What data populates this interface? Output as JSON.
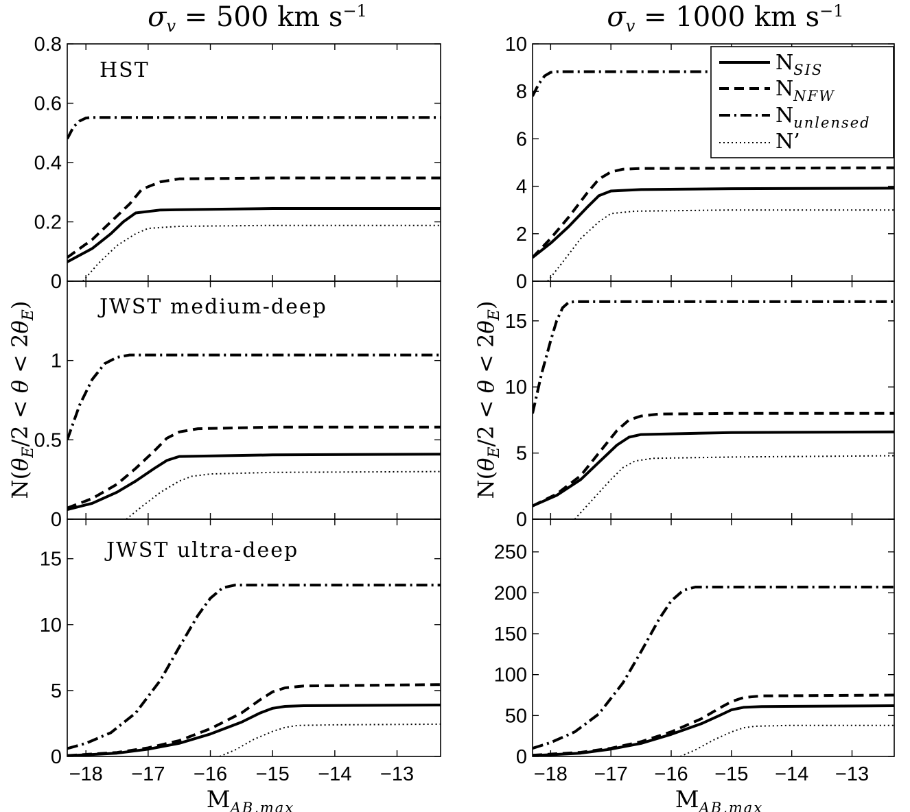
{
  "figure": {
    "titles": [
      "σ_v = 500 km s⁻¹",
      "σ_v = 1000 km s⁻¹"
    ],
    "xlabel_main": "M",
    "xlabel_sub": "AB,max",
    "ylabel": "N(θ_E/2 < θ < 2θ_E)",
    "legend": [
      {
        "main": "N",
        "sub": "SIS",
        "style": "solid"
      },
      {
        "main": "N",
        "sub": "NFW",
        "style": "dashed"
      },
      {
        "main": "N",
        "sub": "unlensed",
        "style": "dashdot"
      },
      {
        "main": "N’",
        "sub": "",
        "style": "dotted"
      }
    ]
  },
  "chart_data": [
    {
      "type": "line",
      "title": "σ_v = 500 km s⁻¹",
      "label": "HST",
      "xlim": [
        -18.3,
        -12.3
      ],
      "ylim": [
        0,
        0.8
      ],
      "xticks": [
        -18,
        -17,
        -16,
        -15,
        -14,
        -13
      ],
      "show_xticklabels": false,
      "yticks": [
        0,
        0.2,
        0.4,
        0.6,
        0.8
      ],
      "ytick_labels": [
        "0",
        "0.2",
        "0.4",
        "0.6",
        "0.8"
      ],
      "series": [
        {
          "name": "N_SIS",
          "style": "solid",
          "x": [
            -18.3,
            -17.9,
            -17.6,
            -17.4,
            -17.2,
            -16.8,
            -15,
            -12.3
          ],
          "y": [
            0.065,
            0.11,
            0.16,
            0.2,
            0.23,
            0.24,
            0.245,
            0.245
          ]
        },
        {
          "name": "N_NFW",
          "style": "dashed",
          "x": [
            -18.3,
            -17.9,
            -17.6,
            -17.3,
            -17.1,
            -16.8,
            -16.5,
            -15,
            -12.3
          ],
          "y": [
            0.08,
            0.14,
            0.2,
            0.26,
            0.31,
            0.335,
            0.345,
            0.348,
            0.348
          ]
        },
        {
          "name": "N_unlensed",
          "style": "dashdot",
          "x": [
            -18.3,
            -18.2,
            -18.1,
            -18,
            -17.9,
            -12.3
          ],
          "y": [
            0.48,
            0.52,
            0.54,
            0.55,
            0.552,
            0.552
          ]
        },
        {
          "name": "N’",
          "style": "dotted",
          "x": [
            -18.05,
            -17.8,
            -17.5,
            -17.2,
            -17,
            -16.5,
            -15,
            -12.3
          ],
          "y": [
            0.0,
            0.06,
            0.12,
            0.16,
            0.178,
            0.185,
            0.188,
            0.188
          ]
        }
      ]
    },
    {
      "type": "line",
      "title": "σ_v = 1000 km s⁻¹",
      "label": "",
      "xlim": [
        -18.3,
        -12.3
      ],
      "ylim": [
        0,
        10
      ],
      "xticks": [
        -18,
        -17,
        -16,
        -15,
        -14,
        -13
      ],
      "show_xticklabels": false,
      "yticks": [
        0,
        2,
        4,
        6,
        8,
        10
      ],
      "ytick_labels": [
        "0",
        "2",
        "4",
        "6",
        "8",
        "10"
      ],
      "series": [
        {
          "name": "N_SIS",
          "style": "solid",
          "x": [
            -18.3,
            -18,
            -17.7,
            -17.4,
            -17.2,
            -17,
            -16.5,
            -15,
            -12.3
          ],
          "y": [
            1.0,
            1.6,
            2.3,
            3.1,
            3.6,
            3.8,
            3.86,
            3.9,
            3.92
          ]
        },
        {
          "name": "N_NFW",
          "style": "dashed",
          "x": [
            -18.3,
            -18,
            -17.7,
            -17.4,
            -17.2,
            -17,
            -16.8,
            -16.5,
            -15,
            -12.3
          ],
          "y": [
            1.0,
            1.8,
            2.7,
            3.7,
            4.3,
            4.6,
            4.72,
            4.75,
            4.76,
            4.78
          ]
        },
        {
          "name": "N_unlensed",
          "style": "dashdot",
          "x": [
            -18.3,
            -18.2,
            -18.1,
            -18,
            -17.9,
            -12.3
          ],
          "y": [
            7.8,
            8.3,
            8.65,
            8.8,
            8.83,
            8.83
          ]
        },
        {
          "name": "N’",
          "style": "dotted",
          "x": [
            -18.05,
            -17.8,
            -17.5,
            -17.2,
            -17,
            -16.6,
            -15,
            -12.3
          ],
          "y": [
            0.0,
            0.8,
            1.8,
            2.5,
            2.85,
            2.95,
            3.0,
            3.0
          ]
        }
      ]
    },
    {
      "type": "line",
      "title": "",
      "label": "JWST medium-deep",
      "xlim": [
        -18.3,
        -12.3
      ],
      "ylim": [
        0,
        1.5
      ],
      "xticks": [
        -18,
        -17,
        -16,
        -15,
        -14,
        -13
      ],
      "show_xticklabels": false,
      "yticks": [
        0,
        0.5,
        1
      ],
      "ytick_labels": [
        "0",
        "0.5",
        "1"
      ],
      "series": [
        {
          "name": "N_SIS",
          "style": "solid",
          "x": [
            -18.3,
            -17.9,
            -17.5,
            -17.2,
            -16.9,
            -16.7,
            -16.5,
            -15,
            -12.3
          ],
          "y": [
            0.06,
            0.1,
            0.17,
            0.24,
            0.32,
            0.37,
            0.395,
            0.405,
            0.41
          ]
        },
        {
          "name": "N_NFW",
          "style": "dashed",
          "x": [
            -18.3,
            -17.9,
            -17.5,
            -17.2,
            -16.9,
            -16.7,
            -16.5,
            -16.2,
            -15,
            -12.3
          ],
          "y": [
            0.07,
            0.13,
            0.22,
            0.32,
            0.43,
            0.51,
            0.55,
            0.57,
            0.58,
            0.58
          ]
        },
        {
          "name": "N_unlensed",
          "style": "dashdot",
          "x": [
            -18.3,
            -18.1,
            -17.9,
            -17.7,
            -17.5,
            -17.3,
            -12.3
          ],
          "y": [
            0.5,
            0.72,
            0.88,
            0.98,
            1.02,
            1.035,
            1.035
          ]
        },
        {
          "name": "N’",
          "style": "dotted",
          "x": [
            -17.35,
            -17.1,
            -16.8,
            -16.5,
            -16.3,
            -16,
            -15,
            -12.3
          ],
          "y": [
            0.0,
            0.08,
            0.17,
            0.24,
            0.27,
            0.285,
            0.295,
            0.3
          ]
        }
      ]
    },
    {
      "type": "line",
      "title": "",
      "label": "",
      "xlim": [
        -18.3,
        -12.3
      ],
      "ylim": [
        0,
        18
      ],
      "xticks": [
        -18,
        -17,
        -16,
        -15,
        -14,
        -13
      ],
      "show_xticklabels": false,
      "yticks": [
        0,
        5,
        10,
        15
      ],
      "ytick_labels": [
        "0",
        "5",
        "10",
        "15"
      ],
      "series": [
        {
          "name": "N_SIS",
          "style": "solid",
          "x": [
            -18.3,
            -17.9,
            -17.5,
            -17.2,
            -16.9,
            -16.7,
            -16.5,
            -15,
            -12.3
          ],
          "y": [
            1.0,
            1.8,
            3.0,
            4.3,
            5.6,
            6.2,
            6.4,
            6.55,
            6.6
          ]
        },
        {
          "name": "N_NFW",
          "style": "dashed",
          "x": [
            -18.3,
            -17.9,
            -17.5,
            -17.2,
            -16.9,
            -16.7,
            -16.5,
            -16.2,
            -15,
            -12.3
          ],
          "y": [
            1.0,
            1.9,
            3.3,
            5.0,
            6.7,
            7.5,
            7.8,
            7.95,
            8.0,
            8.0
          ]
        },
        {
          "name": "N_unlensed",
          "style": "dashdot",
          "x": [
            -18.3,
            -18.15,
            -18,
            -17.9,
            -17.8,
            -17.7,
            -17.6,
            -12.3
          ],
          "y": [
            8.0,
            11.0,
            13.5,
            15.0,
            16.0,
            16.4,
            16.45,
            16.45
          ]
        },
        {
          "name": "N’",
          "style": "dotted",
          "x": [
            -17.6,
            -17.3,
            -17,
            -16.8,
            -16.6,
            -16.3,
            -15,
            -12.3
          ],
          "y": [
            0.0,
            1.5,
            3.0,
            3.9,
            4.4,
            4.6,
            4.7,
            4.8
          ]
        }
      ]
    },
    {
      "type": "line",
      "title": "",
      "label": "JWST ultra-deep",
      "xlim": [
        -18.3,
        -12.3
      ],
      "ylim": [
        0,
        18
      ],
      "xticks": [
        -18,
        -17,
        -16,
        -15,
        -14,
        -13
      ],
      "show_xticklabels": true,
      "xtick_labels": [
        "−18",
        "−17",
        "−16",
        "−15",
        "−14",
        "−13"
      ],
      "yticks": [
        0,
        5,
        10,
        15
      ],
      "ytick_labels": [
        "0",
        "5",
        "10",
        "15"
      ],
      "series": [
        {
          "name": "N_SIS",
          "style": "solid",
          "x": [
            -18.3,
            -17.5,
            -17,
            -16.5,
            -16,
            -15.5,
            -15.2,
            -15,
            -14.8,
            -14.5,
            -12.3
          ],
          "y": [
            0.05,
            0.25,
            0.55,
            1.0,
            1.7,
            2.6,
            3.3,
            3.65,
            3.8,
            3.85,
            3.9
          ]
        },
        {
          "name": "N_NFW",
          "style": "dashed",
          "x": [
            -18.3,
            -17.5,
            -17,
            -16.5,
            -16,
            -15.5,
            -15.2,
            -15,
            -14.8,
            -14.5,
            -12.3
          ],
          "y": [
            0.07,
            0.3,
            0.65,
            1.2,
            2.1,
            3.3,
            4.3,
            4.9,
            5.2,
            5.35,
            5.45
          ]
        },
        {
          "name": "N_unlensed",
          "style": "dashdot",
          "x": [
            -18.3,
            -18,
            -17.6,
            -17.2,
            -16.8,
            -16.5,
            -16.2,
            -16,
            -15.8,
            -15.6,
            -12.3
          ],
          "y": [
            0.6,
            1.0,
            1.8,
            3.3,
            5.8,
            8.3,
            10.7,
            12.0,
            12.8,
            13.0,
            13.0
          ]
        },
        {
          "name": "N’",
          "style": "dotted",
          "x": [
            -15.85,
            -15.6,
            -15.3,
            -15,
            -14.8,
            -14.6,
            -14,
            -12.3
          ],
          "y": [
            0.0,
            0.5,
            1.3,
            1.9,
            2.2,
            2.35,
            2.4,
            2.45
          ]
        }
      ]
    },
    {
      "type": "line",
      "title": "",
      "label": "",
      "xlim": [
        -18.3,
        -12.3
      ],
      "ylim": [
        0,
        290
      ],
      "xticks": [
        -18,
        -17,
        -16,
        -15,
        -14,
        -13
      ],
      "show_xticklabels": true,
      "xtick_labels": [
        "−18",
        "−17",
        "−16",
        "−15",
        "−14",
        "−13"
      ],
      "yticks": [
        0,
        50,
        100,
        150,
        200,
        250
      ],
      "ytick_labels": [
        "0",
        "50",
        "100",
        "150",
        "200",
        "250"
      ],
      "series": [
        {
          "name": "N_SIS",
          "style": "solid",
          "x": [
            -18.3,
            -17.5,
            -17,
            -16.5,
            -16,
            -15.5,
            -15.2,
            -15,
            -14.8,
            -14.5,
            -12.3
          ],
          "y": [
            1.0,
            4.0,
            9.0,
            16.0,
            27.0,
            40.0,
            50.0,
            57.0,
            60.0,
            61.0,
            62.0
          ]
        },
        {
          "name": "N_NFW",
          "style": "dashed",
          "x": [
            -18.3,
            -17.5,
            -17,
            -16.5,
            -16,
            -15.5,
            -15.2,
            -15,
            -14.8,
            -14.5,
            -12.3
          ],
          "y": [
            1.5,
            5.0,
            10.0,
            18.0,
            30.0,
            46.0,
            59.0,
            67.0,
            72.0,
            74.0,
            75.0
          ]
        },
        {
          "name": "N_unlensed",
          "style": "dashdot",
          "x": [
            -18.3,
            -18,
            -17.6,
            -17.2,
            -16.8,
            -16.5,
            -16.2,
            -16,
            -15.8,
            -15.6,
            -12.3
          ],
          "y": [
            10.0,
            17.0,
            30.0,
            52.0,
            90.0,
            128.0,
            168.0,
            190.0,
            203.0,
            207.0,
            207.0
          ]
        },
        {
          "name": "N’",
          "style": "dotted",
          "x": [
            -15.85,
            -15.6,
            -15.3,
            -15,
            -14.8,
            -14.6,
            -14,
            -12.3
          ],
          "y": [
            0.0,
            8.0,
            20.0,
            30.0,
            35.0,
            37.0,
            38.0,
            38.0
          ]
        }
      ]
    }
  ]
}
